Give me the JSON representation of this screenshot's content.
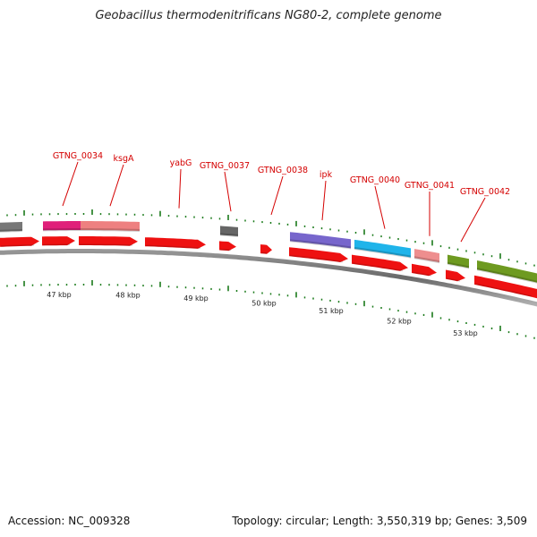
{
  "title": "Geobacillus thermodenitrificans NG80-2, complete genome",
  "footer": {
    "accession": "Accession: NC_009328",
    "summary": "Topology: circular; Length: 3,550,319 bp; Genes: 3,509"
  },
  "colors": {
    "cds": "#ee1111",
    "label": "#d40000",
    "backbone": "#777777",
    "tick": "#1a7a1a"
  },
  "kbp_labels": [
    "47 kbp",
    "48 kbp",
    "49 kbp",
    "50 kbp",
    "51 kbp",
    "52 kbp",
    "53 kbp"
  ],
  "gene_labels": [
    "GTNG_0034",
    "ksgA",
    "yabG",
    "GTNG_0037",
    "GTNG_0038",
    "ipk",
    "GTNG_0040",
    "GTNG_0041",
    "GTNG_0042"
  ],
  "feature_colors": [
    "#777777",
    "#e0207a",
    "#ee8080",
    "#666666",
    "#7766cc",
    "#1fb4ea",
    "#ee8e8e",
    "#6e9a20",
    "#6e9a20"
  ]
}
